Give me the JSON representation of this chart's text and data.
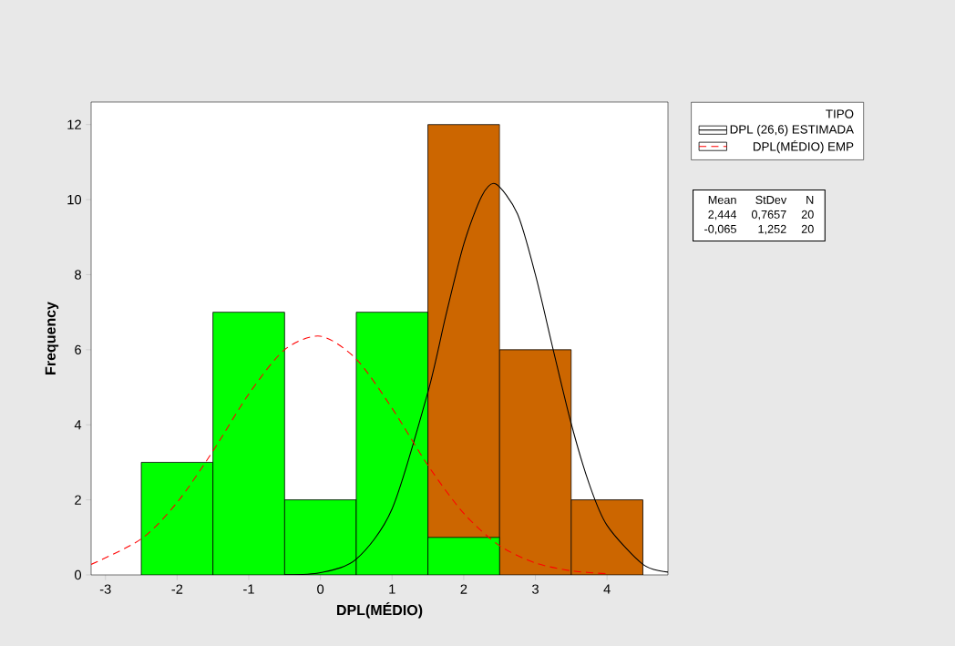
{
  "chart_data": {
    "type": "histogram",
    "xlabel": "DPL(MÉDIO)",
    "ylabel": "Frequency",
    "legend_title": "TIPO",
    "bins": [
      -2.5,
      -1.5,
      -0.5,
      0.5,
      1.5,
      2.5,
      3.5,
      4.5
    ],
    "series": [
      {
        "color": "#cc6600",
        "values": [
          null,
          null,
          null,
          null,
          12,
          6,
          2
        ]
      },
      {
        "color": "#00ff00",
        "values": [
          3,
          7,
          2,
          7,
          1,
          null,
          null
        ]
      },
      {
        "type": "line",
        "name": "DPL (26,6) ESTIMADA",
        "color": "#000000",
        "line_style": "solid",
        "x": [
          -0.5,
          0,
          0.5,
          1,
          1.5,
          1.75,
          2,
          2.25,
          2.444,
          2.75,
          3,
          3.25,
          3.5,
          3.75,
          4,
          4.5,
          4.85
        ],
        "values": [
          0.006,
          0.06,
          0.42,
          1.76,
          4.87,
          6.91,
          8.81,
          10.09,
          10.42,
          9.62,
          8.0,
          5.99,
          4.03,
          2.43,
          1.32,
          0.28,
          0.075
        ]
      },
      {
        "type": "line",
        "name": "DPL(MÉDIO) EMP",
        "color": "#ff0000",
        "line_style": "dashed",
        "x": [
          -3.2,
          -2.5,
          -2,
          -1.5,
          -1,
          -0.5,
          0,
          0.5,
          1,
          1.5,
          2,
          2.5,
          3,
          3.5,
          4
        ],
        "values": [
          0.28,
          0.96,
          1.93,
          3.3,
          4.82,
          6.0,
          6.36,
          5.75,
          4.44,
          2.92,
          1.64,
          0.78,
          0.32,
          0.11,
          0.03
        ]
      }
    ],
    "xlim": [
      -3.2,
      4.85
    ],
    "ylim": [
      0,
      12.6
    ],
    "xticks": [
      -3,
      -2,
      -1,
      0,
      1,
      2,
      3,
      4
    ],
    "yticks": [
      0,
      2,
      4,
      6,
      8,
      10,
      12
    ],
    "grid": false,
    "legend": "right",
    "marker": "none",
    "annotations": [
      "Mean",
      "StDev",
      "N",
      "2,444",
      "0,7657",
      "20",
      "-0,065",
      "1,252",
      "20"
    ]
  }
}
